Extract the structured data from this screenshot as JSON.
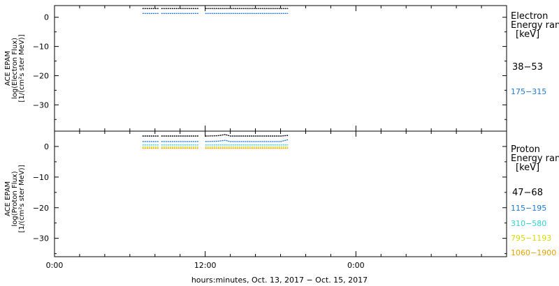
{
  "chart_data": [
    {
      "type": "line",
      "panel": "electron",
      "ylabel_lines": [
        "ACE EPAM",
        "log(Electron Flux)",
        "[1/(cm²s ster MeV)]"
      ],
      "ylim": [
        -39,
        4
      ],
      "yticks": [
        0,
        -10,
        -20,
        -30
      ],
      "ytick_labels": [
        "0",
        "−10",
        "−20",
        "−30"
      ],
      "legend_title_lines": [
        "Electron",
        "Energy ran",
        "[keV]"
      ],
      "series": [
        {
          "name": "38−53",
          "color": "#000000",
          "level": 3.0,
          "data": [
            [
              7,
              3
            ],
            [
              8,
              3
            ],
            [
              8.5,
              3
            ],
            [
              9,
              3
            ],
            [
              10,
              3
            ],
            [
              11,
              3
            ],
            [
              11.5,
              3
            ],
            [
              12,
              3
            ],
            [
              13,
              3
            ],
            [
              14,
              3
            ],
            [
              15,
              3
            ],
            [
              16,
              3
            ],
            [
              17,
              3
            ],
            [
              18,
              3
            ],
            [
              18.6,
              3
            ]
          ]
        },
        {
          "name": "175−315",
          "color": "#1e78d0",
          "level": 1.3,
          "data": [
            [
              7,
              1.3
            ],
            [
              8,
              1.3
            ],
            [
              8.5,
              1.3
            ],
            [
              9,
              1.3
            ],
            [
              10,
              1.3
            ],
            [
              11,
              1.3
            ],
            [
              11.5,
              1.3
            ],
            [
              12,
              1.3
            ],
            [
              13,
              1.3
            ],
            [
              14,
              1.3
            ],
            [
              15,
              1.3
            ],
            [
              16,
              1.3
            ],
            [
              17,
              1.3
            ],
            [
              18,
              1.3
            ],
            [
              18.6,
              1.3
            ]
          ]
        }
      ]
    },
    {
      "type": "line",
      "panel": "proton",
      "ylabel_lines": [
        "ACE EPAM",
        "log(Proton Flux)",
        "[1/(cm²s ster MeV)]"
      ],
      "ylim": [
        -36,
        5
      ],
      "yticks": [
        0,
        -10,
        -20,
        -30
      ],
      "ytick_labels": [
        "0",
        "−10",
        "−20",
        "−30"
      ],
      "legend_title_lines": [
        "Proton",
        "Energy ran",
        "[keV]"
      ],
      "series": [
        {
          "name": "47−68",
          "color": "#000000",
          "data": [
            [
              7,
              3.4
            ],
            [
              8,
              3.4
            ],
            [
              9,
              3.4
            ],
            [
              10,
              3.4
            ],
            [
              11,
              3.4
            ],
            [
              12,
              3.4
            ],
            [
              13,
              3.5
            ],
            [
              13.6,
              3.9
            ],
            [
              14,
              3.4
            ],
            [
              15,
              3.4
            ],
            [
              16,
              3.4
            ],
            [
              17,
              3.4
            ],
            [
              18,
              3.4
            ],
            [
              18.6,
              3.6
            ]
          ]
        },
        {
          "name": "115−195",
          "color": "#1e78d0",
          "data": [
            [
              7,
              1.6
            ],
            [
              8,
              1.6
            ],
            [
              9,
              1.6
            ],
            [
              10,
              1.6
            ],
            [
              11,
              1.6
            ],
            [
              12,
              1.6
            ],
            [
              13,
              1.7
            ],
            [
              13.6,
              2.0
            ],
            [
              14,
              1.6
            ],
            [
              15,
              1.6
            ],
            [
              16,
              1.6
            ],
            [
              17,
              1.6
            ],
            [
              18,
              1.6
            ],
            [
              18.6,
              2.2
            ]
          ]
        },
        {
          "name": "310−580",
          "color": "#30d0d0",
          "data": [
            [
              7,
              0.5
            ],
            [
              8,
              0.5
            ],
            [
              9,
              0.5
            ],
            [
              10,
              0.5
            ],
            [
              11,
              0.5
            ],
            [
              12,
              0.5
            ],
            [
              13,
              0.5
            ],
            [
              14,
              0.5
            ],
            [
              15,
              0.5
            ],
            [
              16,
              0.5
            ],
            [
              17,
              0.5
            ],
            [
              18,
              0.5
            ],
            [
              18.6,
              0.5
            ]
          ]
        },
        {
          "name": "795−1193",
          "color": "#d8d800",
          "data": [
            [
              7,
              -0.2
            ],
            [
              8,
              -0.2
            ],
            [
              9,
              -0.2
            ],
            [
              10,
              -0.2
            ],
            [
              11,
              -0.2
            ],
            [
              12,
              -0.2
            ],
            [
              13,
              -0.2
            ],
            [
              14,
              -0.2
            ],
            [
              15,
              -0.2
            ],
            [
              16,
              -0.2
            ],
            [
              17,
              -0.2
            ],
            [
              18,
              -0.2
            ],
            [
              18.6,
              -0.2
            ]
          ]
        },
        {
          "name": "1060−1900",
          "color": "#e8a000",
          "data": [
            [
              7,
              -0.6
            ],
            [
              8,
              -0.6
            ],
            [
              9,
              -0.6
            ],
            [
              10,
              -0.6
            ],
            [
              11,
              -0.6
            ],
            [
              12,
              -0.6
            ],
            [
              13,
              -0.6
            ],
            [
              14,
              -0.6
            ],
            [
              15,
              -0.6
            ],
            [
              16,
              -0.6
            ],
            [
              17,
              -0.6
            ],
            [
              18,
              -0.6
            ],
            [
              18.6,
              -0.6
            ]
          ]
        }
      ]
    }
  ],
  "x_axis": {
    "xlim": [
      0,
      36
    ],
    "ticks": [
      0,
      12,
      24
    ],
    "tick_labels": [
      "0:00",
      "12:00",
      "0:00"
    ],
    "minor_step": 2,
    "title": "hours:minutes, Oct. 13, 2017 − Oct. 15, 2017"
  },
  "data_gaps_hours": [
    8.3,
    8.5,
    11.5,
    12.0
  ]
}
